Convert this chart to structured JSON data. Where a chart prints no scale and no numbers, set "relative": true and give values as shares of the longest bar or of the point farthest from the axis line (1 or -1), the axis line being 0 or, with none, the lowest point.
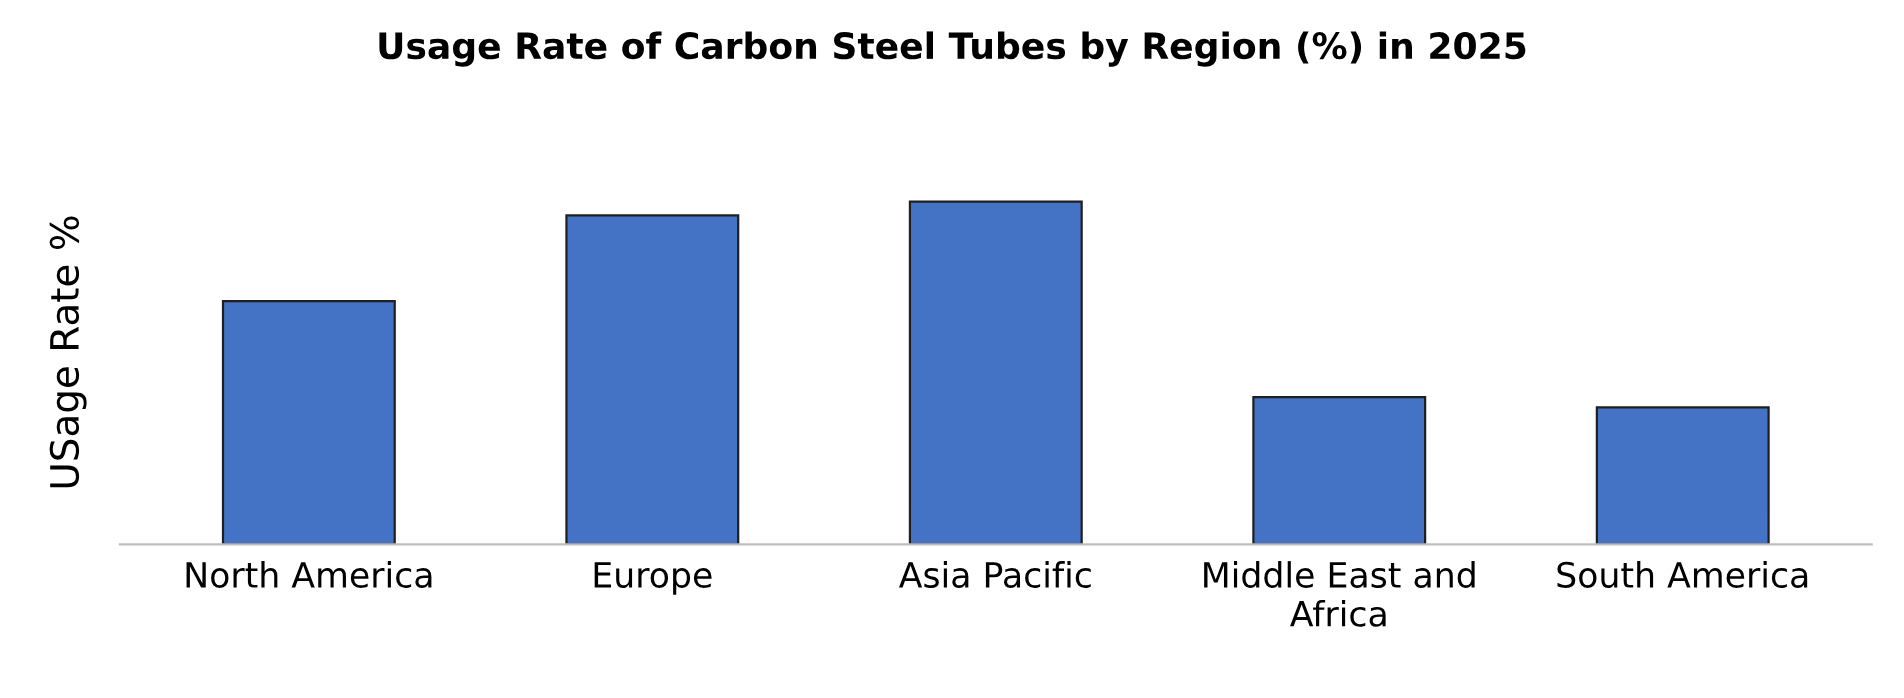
{
  "chart_data": {
    "type": "bar",
    "title": "Usage Rate of Carbon Steel Tubes by Region (%) in 2025",
    "ylabel": "USage Rate %",
    "relative": true,
    "categories": [
      "North America",
      "Europe",
      "Asia Pacific",
      "Middle East and Africa",
      "South America"
    ],
    "values": [
      0.71,
      0.96,
      1,
      0.43,
      0.4
    ],
    "color": "#4472c4",
    "grid": false,
    "legend": false
  }
}
